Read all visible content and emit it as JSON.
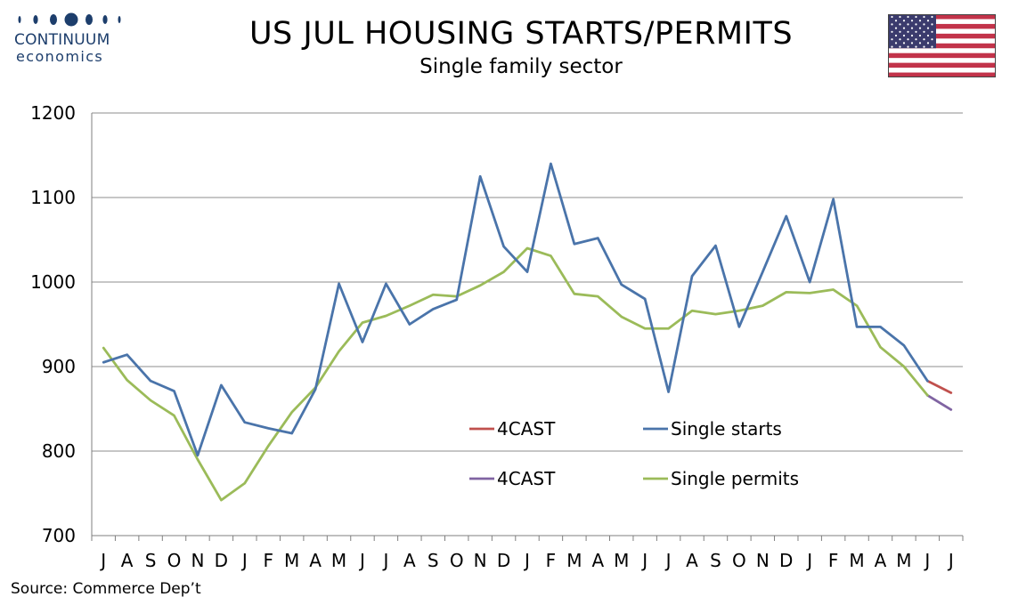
{
  "header": {
    "title": "US JUL HOUSING STARTS/PERMITS",
    "subtitle": "Single family sector",
    "logo_name": "CONTINUUM",
    "logo_sub": "economics",
    "flag_icon": "us-flag-icon"
  },
  "footer": {
    "source": "Source: Commerce Dep’t"
  },
  "colors": {
    "starts": "#4a74aa",
    "permits": "#9bbb59",
    "forecast_starts": "#c0504d",
    "forecast_permits": "#8064a2",
    "grid": "#8c8c8c",
    "logo": "#1d3e6c"
  },
  "chart_data": {
    "type": "line",
    "title": "US JUL HOUSING STARTS/PERMITS",
    "subtitle": "Single family sector",
    "categories": [
      "J",
      "A",
      "S",
      "O",
      "N",
      "D",
      "J",
      "F",
      "M",
      "A",
      "M",
      "J",
      "J",
      "A",
      "S",
      "O",
      "N",
      "D",
      "J",
      "F",
      "M",
      "A",
      "M",
      "J",
      "J",
      "A",
      "S",
      "O",
      "N",
      "D",
      "J",
      "F",
      "M",
      "A",
      "M",
      "J",
      "J"
    ],
    "ylim": [
      700,
      1200
    ],
    "yticks": [
      700,
      800,
      900,
      1000,
      1100,
      1200
    ],
    "grid": true,
    "legend_position": "center-right",
    "series": [
      {
        "name": "Single starts",
        "color": "#4a74aa",
        "values": [
          905,
          914,
          883,
          871,
          795,
          878,
          834,
          827,
          821,
          873,
          998,
          929,
          998,
          950,
          968,
          979,
          1125,
          1042,
          1012,
          1140,
          1045,
          1052,
          997,
          980,
          870,
          1007,
          1043,
          947,
          1012,
          1078,
          1000,
          1098,
          947,
          947,
          925,
          883,
          null
        ]
      },
      {
        "name": "Single permits",
        "color": "#9bbb59",
        "values": [
          922,
          884,
          860,
          842,
          790,
          742,
          762,
          806,
          846,
          875,
          918,
          952,
          960,
          972,
          985,
          983,
          996,
          1012,
          1040,
          1031,
          986,
          983,
          959,
          945,
          945,
          966,
          962,
          966,
          972,
          988,
          987,
          991,
          972,
          923,
          900,
          866,
          null
        ]
      },
      {
        "name": "4CAST",
        "color": "#c0504d",
        "values": [
          null,
          null,
          null,
          null,
          null,
          null,
          null,
          null,
          null,
          null,
          null,
          null,
          null,
          null,
          null,
          null,
          null,
          null,
          null,
          null,
          null,
          null,
          null,
          null,
          null,
          null,
          null,
          null,
          null,
          null,
          null,
          null,
          null,
          null,
          null,
          883,
          869
        ]
      },
      {
        "name": "4CAST",
        "color": "#8064a2",
        "values": [
          null,
          null,
          null,
          null,
          null,
          null,
          null,
          null,
          null,
          null,
          null,
          null,
          null,
          null,
          null,
          null,
          null,
          null,
          null,
          null,
          null,
          null,
          null,
          null,
          null,
          null,
          null,
          null,
          null,
          null,
          null,
          null,
          null,
          null,
          null,
          866,
          849
        ]
      }
    ],
    "legend": [
      {
        "label": "4CAST",
        "color": "#c0504d"
      },
      {
        "label": "Single starts",
        "color": "#4a74aa"
      },
      {
        "label": "4CAST",
        "color": "#8064a2"
      },
      {
        "label": "Single permits",
        "color": "#9bbb59"
      }
    ]
  }
}
